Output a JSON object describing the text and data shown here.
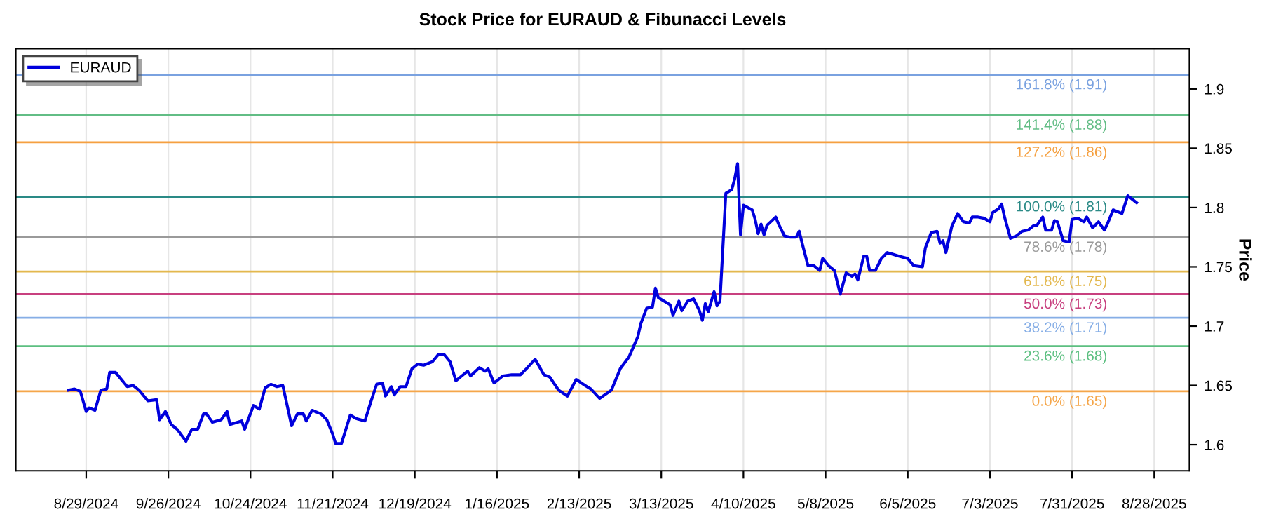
{
  "chart_data": {
    "type": "line",
    "title": "Stock Price for EURAUD & Fibunacci Levels",
    "ylabel": "Price",
    "x": [
      "2024-08-23",
      "2024-08-25",
      "2024-08-27",
      "2024-08-29",
      "2024-08-30",
      "2024-09-01",
      "2024-09-03",
      "2024-09-05",
      "2024-09-06",
      "2024-09-08",
      "2024-09-10",
      "2024-09-12",
      "2024-09-14",
      "2024-09-16",
      "2024-09-19",
      "2024-09-22",
      "2024-09-23",
      "2024-09-25",
      "2024-09-27",
      "2024-09-29",
      "2024-10-02",
      "2024-10-04",
      "2024-10-06",
      "2024-10-08",
      "2024-10-09",
      "2024-10-11",
      "2024-10-14",
      "2024-10-16",
      "2024-10-17",
      "2024-10-21",
      "2024-10-22",
      "2024-10-25",
      "2024-10-27",
      "2024-10-29",
      "2024-10-31",
      "2024-11-02",
      "2024-11-04",
      "2024-11-07",
      "2024-11-09",
      "2024-11-11",
      "2024-11-12",
      "2024-11-14",
      "2024-11-17",
      "2024-11-19",
      "2024-11-21",
      "2024-11-22",
      "2024-11-24",
      "2024-11-27",
      "2024-11-29",
      "2024-12-02",
      "2024-12-04",
      "2024-12-06",
      "2024-12-08",
      "2024-12-09",
      "2024-12-11",
      "2024-12-12",
      "2024-12-14",
      "2024-12-16",
      "2024-12-18",
      "2024-12-20",
      "2024-12-22",
      "2024-12-25",
      "2024-12-27",
      "2024-12-29",
      "2024-12-31",
      "2025-01-02",
      "2025-01-04",
      "2025-01-06",
      "2025-01-07",
      "2025-01-10",
      "2025-01-12",
      "2025-01-13",
      "2025-01-15",
      "2025-01-18",
      "2025-01-21",
      "2025-01-24",
      "2025-01-26",
      "2025-01-29",
      "2025-02-01",
      "2025-02-03",
      "2025-02-06",
      "2025-02-09",
      "2025-02-12",
      "2025-02-15",
      "2025-02-17",
      "2025-02-20",
      "2025-02-24",
      "2025-02-27",
      "2025-03-02",
      "2025-03-05",
      "2025-03-06",
      "2025-03-08",
      "2025-03-10",
      "2025-03-11",
      "2025-03-12",
      "2025-03-14",
      "2025-03-16",
      "2025-03-17",
      "2025-03-19",
      "2025-03-20",
      "2025-03-22",
      "2025-03-24",
      "2025-03-26",
      "2025-03-27",
      "2025-03-28",
      "2025-03-29",
      "2025-03-31",
      "2025-04-01",
      "2025-04-02",
      "2025-04-04",
      "2025-04-06",
      "2025-04-07",
      "2025-04-08",
      "2025-04-09",
      "2025-04-10",
      "2025-04-13",
      "2025-04-14",
      "2025-04-15",
      "2025-04-16",
      "2025-04-17",
      "2025-04-18",
      "2025-04-21",
      "2025-04-22",
      "2025-04-24",
      "2025-04-26",
      "2025-04-28",
      "2025-04-29",
      "2025-04-30",
      "2025-05-02",
      "2025-05-04",
      "2025-05-06",
      "2025-05-07",
      "2025-05-09",
      "2025-05-11",
      "2025-05-13",
      "2025-05-15",
      "2025-05-17",
      "2025-05-18",
      "2025-05-19",
      "2025-05-21",
      "2025-05-22",
      "2025-05-23",
      "2025-05-25",
      "2025-05-27",
      "2025-05-29",
      "2025-06-02",
      "2025-06-05",
      "2025-06-07",
      "2025-06-10",
      "2025-06-11",
      "2025-06-13",
      "2025-06-15",
      "2025-06-16",
      "2025-06-17",
      "2025-06-18",
      "2025-06-20",
      "2025-06-22",
      "2025-06-24",
      "2025-06-26",
      "2025-06-27",
      "2025-06-29",
      "2025-07-01",
      "2025-07-03",
      "2025-07-04",
      "2025-07-06",
      "2025-07-07",
      "2025-07-08",
      "2025-07-10",
      "2025-07-12",
      "2025-07-14",
      "2025-07-16",
      "2025-07-18",
      "2025-07-19",
      "2025-07-21",
      "2025-07-22",
      "2025-07-24",
      "2025-07-25",
      "2025-07-26",
      "2025-07-28",
      "2025-07-30",
      "2025-07-31",
      "2025-08-02",
      "2025-08-04",
      "2025-08-05",
      "2025-08-07",
      "2025-08-09",
      "2025-08-11",
      "2025-08-12",
      "2025-08-14",
      "2025-08-17",
      "2025-08-19",
      "2025-08-22"
    ],
    "series": [
      {
        "name": "EURAUD",
        "color": "#0000dd",
        "values": [
          1.646,
          1.647,
          1.645,
          1.628,
          1.631,
          1.629,
          1.646,
          1.647,
          1.661,
          1.661,
          1.655,
          1.649,
          1.65,
          1.646,
          1.637,
          1.638,
          1.621,
          1.628,
          1.617,
          1.613,
          1.603,
          1.613,
          1.613,
          1.626,
          1.626,
          1.619,
          1.621,
          1.628,
          1.617,
          1.62,
          1.613,
          1.633,
          1.63,
          1.648,
          1.651,
          1.649,
          1.65,
          1.616,
          1.626,
          1.626,
          1.62,
          1.629,
          1.626,
          1.621,
          1.609,
          1.601,
          1.601,
          1.625,
          1.622,
          1.62,
          1.636,
          1.651,
          1.652,
          1.641,
          1.649,
          1.642,
          1.649,
          1.649,
          1.664,
          1.668,
          1.667,
          1.67,
          1.676,
          1.676,
          1.67,
          1.654,
          1.658,
          1.662,
          1.658,
          1.665,
          1.662,
          1.664,
          1.652,
          1.658,
          1.659,
          1.659,
          1.664,
          1.672,
          1.659,
          1.657,
          1.646,
          1.641,
          1.655,
          1.65,
          1.647,
          1.639,
          1.646,
          1.664,
          1.674,
          1.691,
          1.702,
          1.715,
          1.716,
          1.732,
          1.724,
          1.721,
          1.718,
          1.709,
          1.721,
          1.713,
          1.721,
          1.723,
          1.713,
          1.705,
          1.719,
          1.712,
          1.729,
          1.717,
          1.721,
          1.812,
          1.815,
          1.824,
          1.837,
          1.777,
          1.802,
          1.798,
          1.79,
          1.778,
          1.786,
          1.777,
          1.785,
          1.792,
          1.786,
          1.776,
          1.775,
          1.775,
          1.78,
          1.77,
          1.751,
          1.751,
          1.747,
          1.757,
          1.751,
          1.747,
          1.727,
          1.745,
          1.742,
          1.744,
          1.739,
          1.759,
          1.759,
          1.747,
          1.747,
          1.757,
          1.762,
          1.759,
          1.757,
          1.751,
          1.75,
          1.766,
          1.779,
          1.78,
          1.77,
          1.772,
          1.762,
          1.784,
          1.795,
          1.788,
          1.787,
          1.792,
          1.792,
          1.791,
          1.788,
          1.796,
          1.799,
          1.803,
          1.792,
          1.774,
          1.776,
          1.78,
          1.781,
          1.785,
          1.785,
          1.792,
          1.781,
          1.781,
          1.789,
          1.788,
          1.772,
          1.771,
          1.79,
          1.791,
          1.788,
          1.792,
          1.783,
          1.788,
          1.781,
          1.786,
          1.798,
          1.795,
          1.81,
          1.804
        ]
      }
    ],
    "xlim": [
      "2024-08-05",
      "2025-09-09"
    ],
    "xticks": [
      {
        "value": "2024-08-29",
        "label": "8/29/2024"
      },
      {
        "value": "2024-09-26",
        "label": "9/26/2024"
      },
      {
        "value": "2024-10-24",
        "label": "10/24/2024"
      },
      {
        "value": "2024-11-21",
        "label": "11/21/2024"
      },
      {
        "value": "2024-12-19",
        "label": "12/19/2024"
      },
      {
        "value": "2025-01-16",
        "label": "1/16/2025"
      },
      {
        "value": "2025-02-13",
        "label": "2/13/2025"
      },
      {
        "value": "2025-03-13",
        "label": "3/13/2025"
      },
      {
        "value": "2025-04-10",
        "label": "4/10/2025"
      },
      {
        "value": "2025-05-08",
        "label": "5/8/2025"
      },
      {
        "value": "2025-06-05",
        "label": "6/5/2025"
      },
      {
        "value": "2025-07-03",
        "label": "7/3/2025"
      },
      {
        "value": "2025-07-31",
        "label": "7/31/2025"
      },
      {
        "value": "2025-08-28",
        "label": "8/28/2025"
      }
    ],
    "ylim": [
      1.578,
      1.934
    ],
    "yticks": [
      1.6,
      1.65,
      1.7,
      1.75,
      1.8,
      1.85,
      1.9
    ],
    "ref_lines": [
      {
        "axis": "y",
        "value": 1.645,
        "label": "0.0% (1.65)",
        "color": "#f5a64a"
      },
      {
        "axis": "y",
        "value": 1.683,
        "label": "23.6% (1.68)",
        "color": "#5cbf80"
      },
      {
        "axis": "y",
        "value": 1.707,
        "label": "38.2% (1.71)",
        "color": "#86aee6"
      },
      {
        "axis": "y",
        "value": 1.727,
        "label": "50.0% (1.73)",
        "color": "#c8407f"
      },
      {
        "axis": "y",
        "value": 1.746,
        "label": "61.8% (1.75)",
        "color": "#e3b84e"
      },
      {
        "axis": "y",
        "value": 1.775,
        "label": "78.6% (1.78)",
        "color": "#9a9a9a"
      },
      {
        "axis": "y",
        "value": 1.809,
        "label": "100.0% (1.81)",
        "color": "#2a8a86"
      },
      {
        "axis": "y",
        "value": 1.855,
        "label": "127.2% (1.86)",
        "color": "#f5a040"
      },
      {
        "axis": "y",
        "value": 1.878,
        "label": "141.4% (1.88)",
        "color": "#62bd85"
      },
      {
        "axis": "y",
        "value": 1.912,
        "label": "161.8% (1.91)",
        "color": "#7aa2e0"
      }
    ],
    "grid": "x",
    "legend": "top left",
    "line_style": "solid",
    "marker": "none"
  }
}
